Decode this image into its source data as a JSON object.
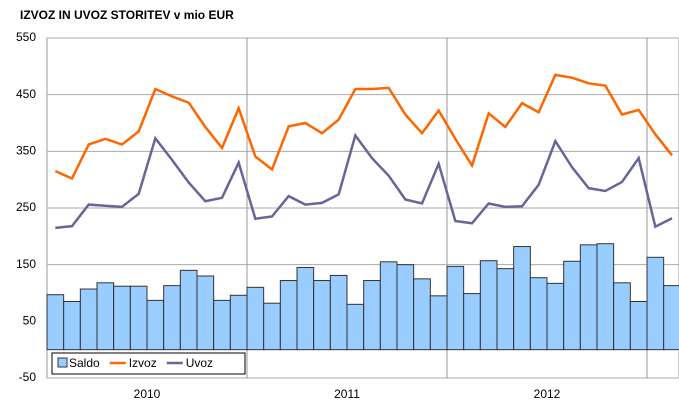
{
  "chart_data": {
    "type": "bar_line",
    "title": "IZVOZ IN UVOZ STORITEV v mio EUR",
    "categories": [
      null,
      null,
      null,
      null,
      null,
      null,
      null,
      null,
      null,
      null,
      null,
      null,
      null,
      null,
      null,
      null,
      null,
      null,
      null,
      null,
      null,
      null,
      null,
      null,
      null,
      null,
      null,
      null,
      null,
      null,
      null,
      null,
      null,
      null,
      null,
      null,
      null,
      null
    ],
    "x_groups": [
      {
        "label": "2010",
        "start": 0,
        "end": 12
      },
      {
        "label": "2011",
        "start": 12,
        "end": 24
      },
      {
        "label": "2012",
        "start": 24,
        "end": 36
      }
    ],
    "ylim": [
      -50,
      550
    ],
    "yticks": [
      -50,
      50,
      150,
      250,
      350,
      450,
      550
    ],
    "grid": true,
    "legend": "bottom-left",
    "series": [
      {
        "name": "Saldo",
        "type": "bar",
        "color": "#99ccff",
        "values": [
          97,
          85,
          107,
          118,
          112,
          112,
          87,
          113,
          140,
          130,
          87,
          96,
          110,
          82,
          122,
          145,
          122,
          131,
          80,
          122,
          155,
          150,
          125,
          95,
          147,
          99,
          157,
          143,
          182,
          127,
          117,
          156,
          185,
          187,
          118,
          85,
          163,
          113
        ]
      },
      {
        "name": "Izvoz",
        "type": "line",
        "color": "#ff6600",
        "values": [
          315,
          302,
          362,
          372,
          362,
          385,
          460,
          447,
          436,
          393,
          356,
          426,
          341,
          318,
          394,
          400,
          382,
          406,
          460,
          460,
          462,
          415,
          382,
          422,
          372,
          325,
          417,
          393,
          435,
          419,
          485,
          480,
          470,
          466,
          415,
          423,
          380,
          343
        ]
      },
      {
        "name": "Uvoz",
        "type": "line",
        "color": "#666699",
        "values": [
          215,
          218,
          256,
          254,
          252,
          275,
          373,
          335,
          295,
          262,
          268,
          330,
          231,
          235,
          271,
          256,
          259,
          274,
          378,
          338,
          307,
          265,
          258,
          328,
          227,
          223,
          258,
          252,
          253,
          291,
          368,
          322,
          285,
          280,
          296,
          338,
          217,
          232
        ]
      }
    ]
  }
}
